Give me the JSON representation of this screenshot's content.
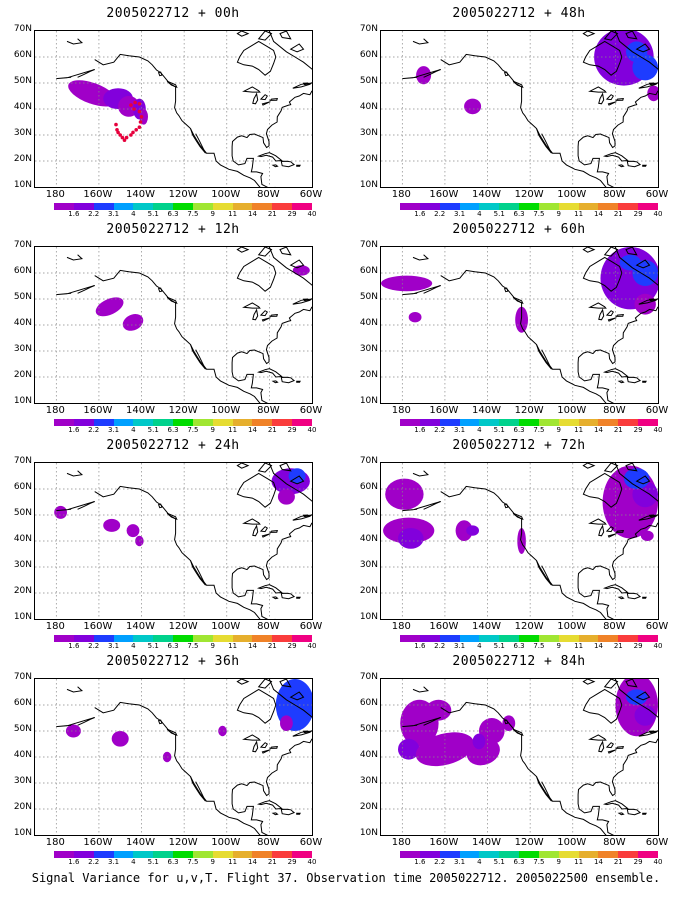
{
  "panels": [
    {
      "title": "2005022712 + 00h",
      "lead": "00h"
    },
    {
      "title": "2005022712 + 48h",
      "lead": "48h"
    },
    {
      "title": "2005022712 + 12h",
      "lead": "12h"
    },
    {
      "title": "2005022712 + 60h",
      "lead": "60h"
    },
    {
      "title": "2005022712 + 24h",
      "lead": "24h"
    },
    {
      "title": "2005022712 + 72h",
      "lead": "72h"
    },
    {
      "title": "2005022712 + 36h",
      "lead": "36h"
    },
    {
      "title": "2005022712 + 84h",
      "lead": "84h"
    }
  ],
  "axes": {
    "y_labels": [
      "70N",
      "60N",
      "50N",
      "40N",
      "30N",
      "20N",
      "10N"
    ],
    "x_labels": [
      "180",
      "160W",
      "140W",
      "120W",
      "100W",
      "80W",
      "60W"
    ]
  },
  "colorbar": {
    "labels": [
      "1.6",
      "2.2",
      "3.1",
      "4",
      "5.1",
      "6.3",
      "7.5",
      "9",
      "11",
      "14",
      "21",
      "29",
      "40"
    ],
    "colors": [
      "#a000c8",
      "#8200dc",
      "#1e3cff",
      "#00a0ff",
      "#00c8c8",
      "#00d28c",
      "#00dc00",
      "#a0e632",
      "#e6dc32",
      "#e6af2d",
      "#f08228",
      "#fa3c3c",
      "#f00082"
    ]
  },
  "flight_track_color": "#e6003c",
  "caption": "Signal Variance for u,v,T. Flight 37. Observation time 2005022712. 2005022500 ensemble."
}
